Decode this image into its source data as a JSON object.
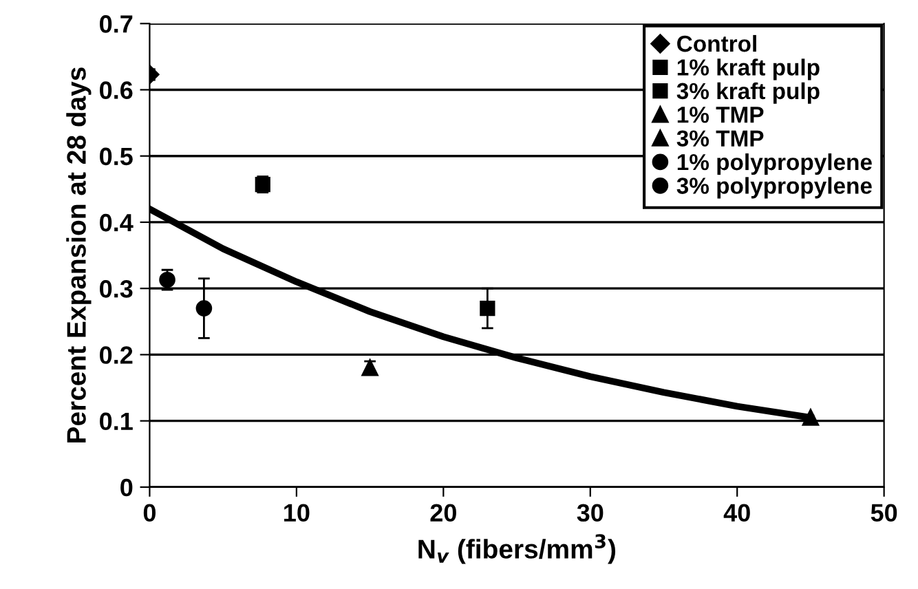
{
  "chart_data": {
    "type": "scatter",
    "xlabel": "N$_{v}$ (fibers/mm$^{3}$)",
    "ylabel": "Percent Expansion at 28 days",
    "xlim": [
      0,
      50
    ],
    "xticks": [
      0,
      10,
      20,
      30,
      40,
      50
    ],
    "ylim": [
      0,
      0.7
    ],
    "yticks": [
      0,
      0.1,
      0.2,
      0.3,
      0.4,
      0.5,
      0.6,
      0.7
    ],
    "grid": "y",
    "legend": "top right",
    "series": [
      {
        "name": "Control",
        "color": "#000000",
        "marker": "diamond",
        "x": [
          0
        ],
        "values": [
          0.623
        ],
        "errors": [
          0.008
        ]
      },
      {
        "name": "1% kraft pulp",
        "color": "#000000",
        "marker": "square",
        "x": [
          7.7
        ],
        "values": [
          0.457
        ],
        "errors": [
          0.012
        ]
      },
      {
        "name": "3% kraft pulp",
        "color": "#000000",
        "marker": "square",
        "x": [
          23.0
        ],
        "values": [
          0.27
        ],
        "errors": [
          0.03
        ]
      },
      {
        "name": "1% TMP",
        "color": "#000000",
        "marker": "triangle",
        "x": [
          15.0
        ],
        "values": [
          0.18
        ],
        "errors": [
          0.01
        ]
      },
      {
        "name": "3% TMP",
        "color": "#000000",
        "marker": "triangle",
        "x": [
          45.0
        ],
        "values": [
          0.105
        ]
      },
      {
        "name": "1% polypropylene",
        "color": "#000000",
        "marker": "circle",
        "x": [
          1.2
        ],
        "values": [
          0.313
        ],
        "errors": [
          0.015
        ]
      },
      {
        "name": "3% polypropylene",
        "color": "#000000",
        "marker": "circle",
        "x": [
          3.7
        ],
        "values": [
          0.27
        ],
        "errors": [
          0.045
        ]
      },
      {
        "type": "line",
        "color": "#000000",
        "marker": "none",
        "x": [
          0,
          5,
          10,
          15,
          20,
          25,
          30,
          35,
          40,
          45
        ],
        "values": [
          0.42,
          0.36,
          0.31,
          0.265,
          0.227,
          0.195,
          0.167,
          0.143,
          0.122,
          0.105
        ]
      }
    ]
  }
}
